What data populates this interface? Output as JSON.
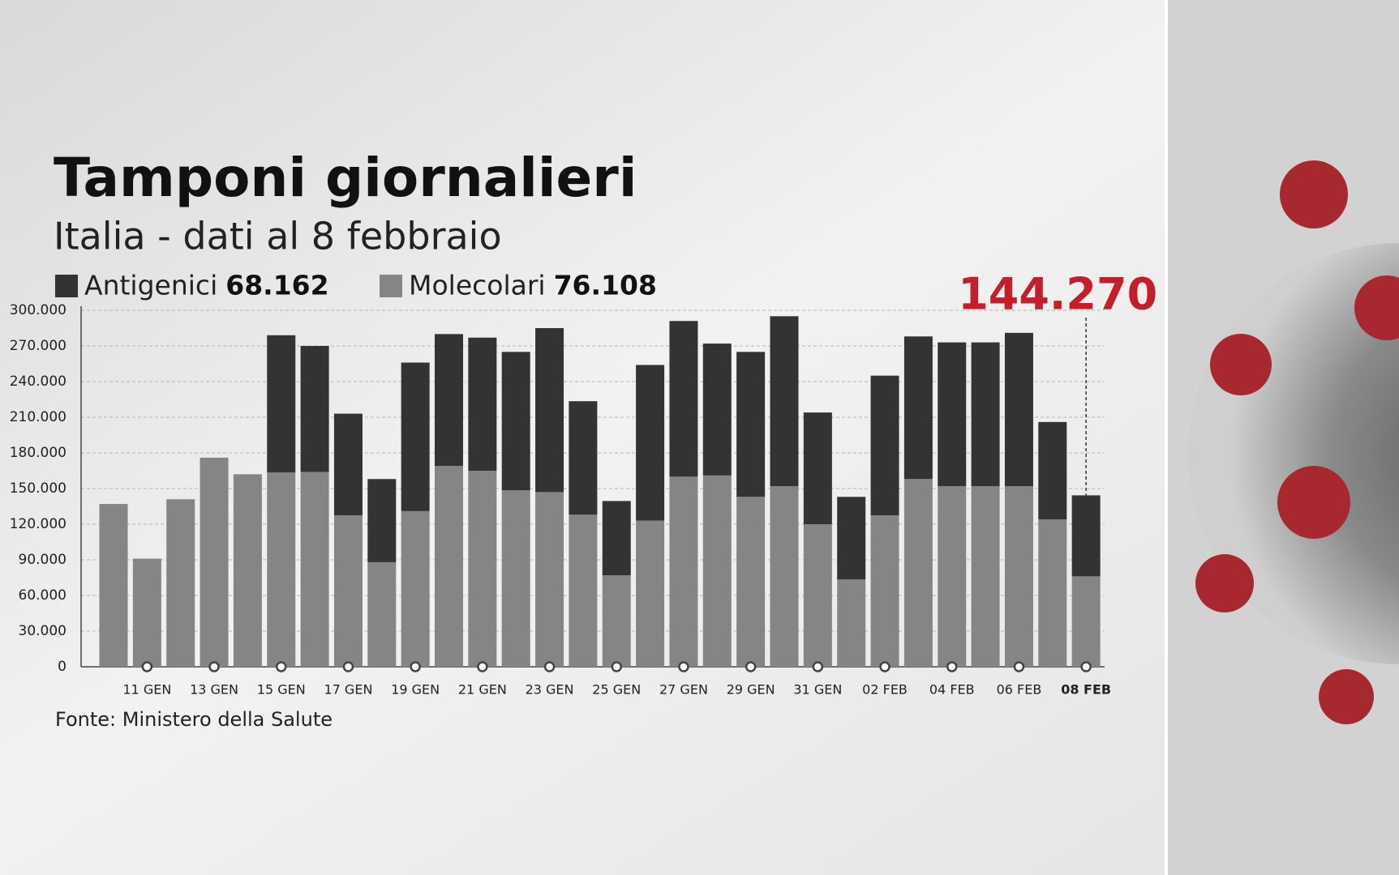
{
  "chart_data": {
    "type": "stacked-bar",
    "title": "Tamponi giornalieri",
    "subtitle": "Italia - dati al 8 febbraio",
    "source": "Fonte: Ministero della Salute",
    "categories": [
      null,
      "11 GEN",
      null,
      "13 GEN",
      null,
      "15 GEN",
      null,
      "17 GEN",
      null,
      "19 GEN",
      null,
      "21 GEN",
      null,
      "23 GEN",
      null,
      "25 GEN",
      null,
      "27 GEN",
      null,
      "29 GEN",
      null,
      "31 GEN",
      null,
      "02 FEB",
      null,
      "04 FEB",
      null,
      "06 FEB",
      null,
      "08 FEB"
    ],
    "series": [
      {
        "name": "Molecolari",
        "color": "#858585",
        "values": [
          137000,
          91000,
          141000,
          176000,
          162000,
          163500,
          164000,
          127500,
          88000,
          131000,
          169000,
          165000,
          148500,
          147000,
          128000,
          77000,
          123000,
          160000,
          161000,
          143000,
          152000,
          120000,
          73500,
          127500,
          158000,
          152000,
          152000,
          152000,
          124000,
          76108
        ],
        "value_labels": [
          null,
          null,
          null,
          null,
          null,
          null,
          null,
          null,
          null,
          null,
          null,
          null,
          null,
          null,
          null,
          null,
          null,
          null,
          null,
          null,
          null,
          null,
          null,
          null,
          null,
          null,
          null,
          null,
          null,
          "76.108"
        ]
      },
      {
        "name": "Antigenici",
        "color": "#333333",
        "values": [
          null,
          null,
          null,
          null,
          null,
          115500,
          106000,
          85500,
          70000,
          125000,
          111000,
          112000,
          116500,
          138000,
          95500,
          62500,
          131000,
          131000,
          111000,
          122000,
          143000,
          94000,
          69500,
          117500,
          120000,
          121000,
          121000,
          129000,
          82000,
          68162
        ],
        "value_labels": [
          null,
          null,
          null,
          null,
          null,
          null,
          null,
          null,
          null,
          null,
          null,
          null,
          null,
          null,
          null,
          null,
          null,
          null,
          null,
          null,
          null,
          null,
          null,
          null,
          null,
          null,
          null,
          null,
          null,
          "68.162"
        ]
      }
    ],
    "total_label": {
      "value": 144270,
      "label": "144.270",
      "color": "#c41e2a"
    },
    "ylim": [
      0,
      300000
    ],
    "yticks": [
      0,
      {
        "value": 30000,
        "label": "30.000"
      },
      {
        "value": 60000,
        "label": "60.000"
      },
      {
        "value": 90000,
        "label": "90.000"
      },
      {
        "value": 120000,
        "label": "120.000"
      },
      {
        "value": 150000,
        "label": "150.000"
      },
      {
        "value": 180000,
        "label": "180.000"
      },
      {
        "value": 210000,
        "label": "210.000"
      },
      {
        "value": 240000,
        "label": "240.000"
      },
      {
        "value": 270000,
        "label": "270.000"
      },
      {
        "value": 300000,
        "label": "300.000"
      }
    ],
    "grid": true
  }
}
